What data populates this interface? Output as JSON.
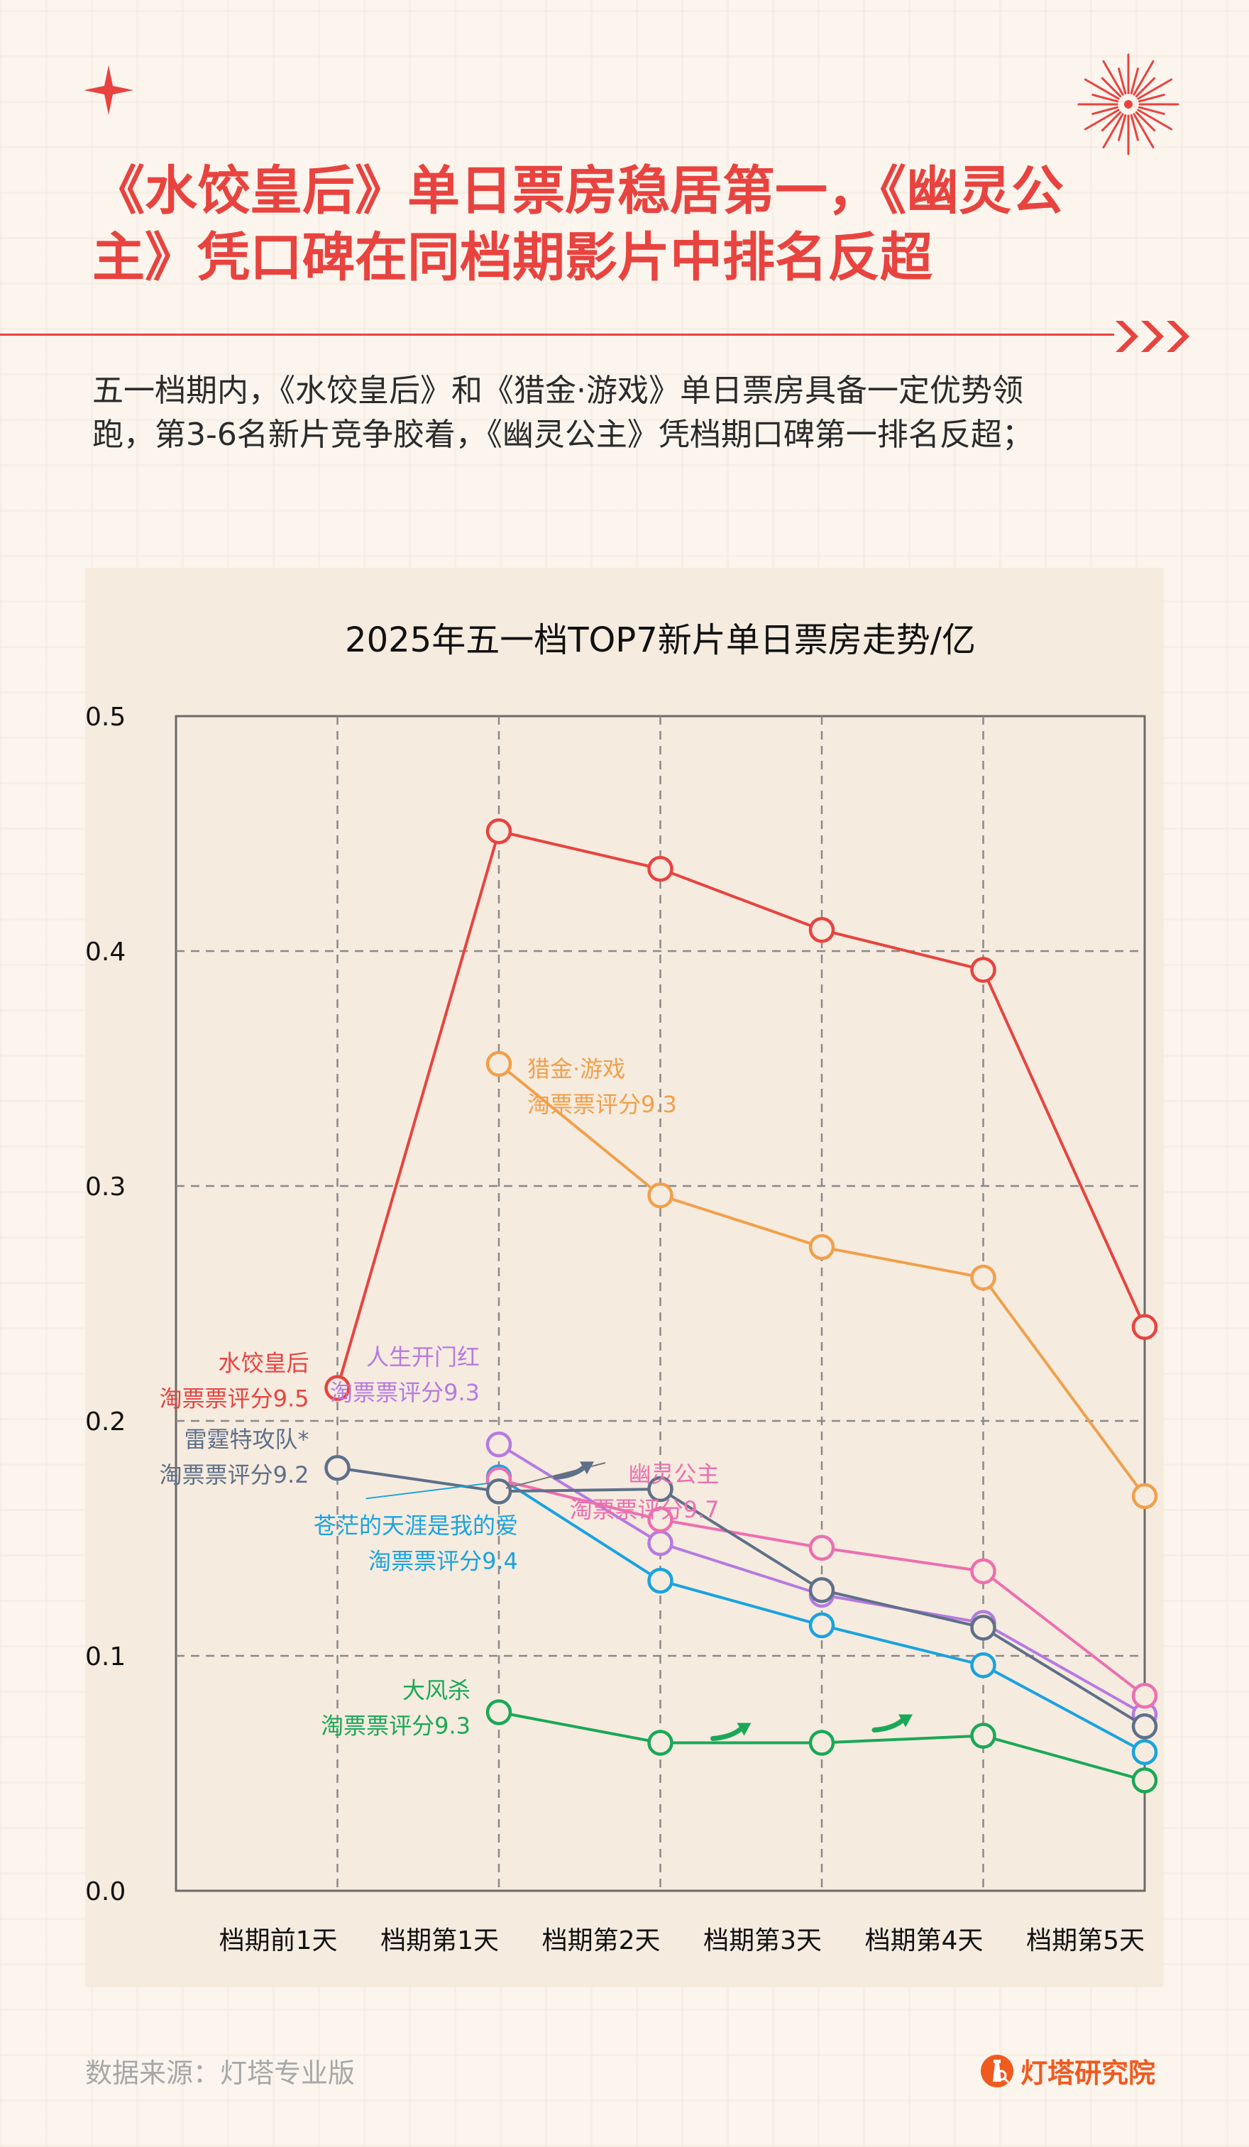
{
  "header": {
    "title_lines": [
      "《水饺皇后》单日票房稳居第一，《幽灵公",
      "主》凭口碑在同档期影片中排名反超"
    ],
    "subtitle_lines": [
      "五一档期内，《水饺皇后》和《猎金·游戏》单日票房具备一定优势领",
      "跑，第3-6名新片竞争胶着，《幽灵公主》凭档期口碑第一排名反超；"
    ]
  },
  "footer": {
    "source": "数据来源：灯塔专业版",
    "brand": "灯塔研究院"
  },
  "colors": {
    "accent": "#e8433f",
    "background": "#fbf5ee",
    "panel": "#f6ebdf"
  },
  "icons": [
    "sparkle-star-icon",
    "firework-icon",
    "triple-chevron-icon",
    "lighthouse-logo-icon"
  ],
  "chart_data": {
    "type": "line",
    "title": "2025年五一档TOP7新片单日票房走势/亿",
    "xlabel": "",
    "ylabel": "",
    "categories": [
      "档期前1天",
      "档期第1天",
      "档期第2天",
      "档期第3天",
      "档期第4天",
      "档期第5天"
    ],
    "ylim": [
      0,
      0.5
    ],
    "yticks": [
      "0.0",
      "0.1",
      "0.2",
      "0.3",
      "0.4",
      "0.5"
    ],
    "grid": true,
    "series": [
      {
        "name": "水饺皇后",
        "rating": "淘票票评分9.5",
        "color": "#e8433f",
        "values": [
          0.214,
          0.451,
          0.435,
          0.409,
          0.392,
          0.24
        ]
      },
      {
        "name": "猎金·游戏",
        "rating": "淘票票评分9.3",
        "color": "#f0a04b",
        "values": [
          null,
          0.352,
          0.296,
          0.274,
          0.261,
          0.168
        ]
      },
      {
        "name": "人生开门红",
        "rating": "淘票票评分9.3",
        "color": "#b57be0",
        "values": [
          null,
          0.19,
          0.148,
          0.126,
          0.114,
          0.075
        ]
      },
      {
        "name": "幽灵公主",
        "rating": "淘票票评分9.7",
        "color": "#ec6fb0",
        "values": [
          null,
          0.175,
          0.158,
          0.146,
          0.136,
          0.083
        ]
      },
      {
        "name": "雷霆特攻队*",
        "rating": "淘票票评分9.2",
        "color": "#5e7089",
        "values": [
          0.18,
          0.17,
          0.171,
          0.128,
          0.112,
          0.07
        ]
      },
      {
        "name": "苍茫的天涯是我的爱",
        "rating": "淘票票评分9.4",
        "color": "#1aa3de",
        "values": [
          null,
          0.176,
          0.132,
          0.113,
          0.096,
          0.059
        ]
      },
      {
        "name": "大风杀",
        "rating": "淘票票评分9.3",
        "color": "#1aa858",
        "values": [
          null,
          0.076,
          0.063,
          0.063,
          0.066,
          0.047
        ]
      }
    ]
  }
}
